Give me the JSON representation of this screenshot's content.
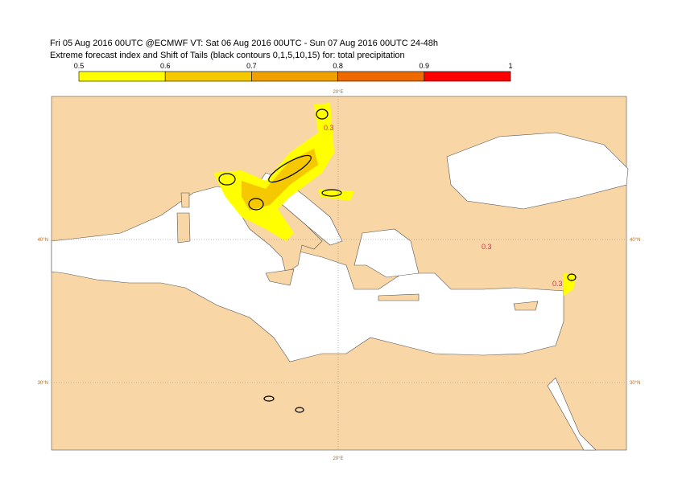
{
  "header": {
    "line1": "Fri 05 Aug 2016 00UTC @ECMWF VT: Sat 06 Aug 2016 00UTC - Sun 07 Aug 2016 00UTC  24-48h",
    "line2": "Extreme forecast index and Shift of Tails (black contours 0,1,5,10,15) for: total precipitation"
  },
  "colorbar": {
    "ticks": [
      "0.5",
      "0.6",
      "0.7",
      "0.8",
      "0.9",
      "1"
    ],
    "colors": [
      "#ffff00",
      "#f5c800",
      "#f0a000",
      "#ee6a00",
      "#ff0000"
    ]
  },
  "map": {
    "lon_label_top": "20°E",
    "lon_label_bottom": "20°E",
    "lat_labels_left": [
      "40°N",
      "30°N"
    ],
    "lat_labels_right": [
      "40°N",
      "30°N"
    ],
    "contour_labels": [
      "0.3",
      "0.3",
      "0.3"
    ]
  }
}
